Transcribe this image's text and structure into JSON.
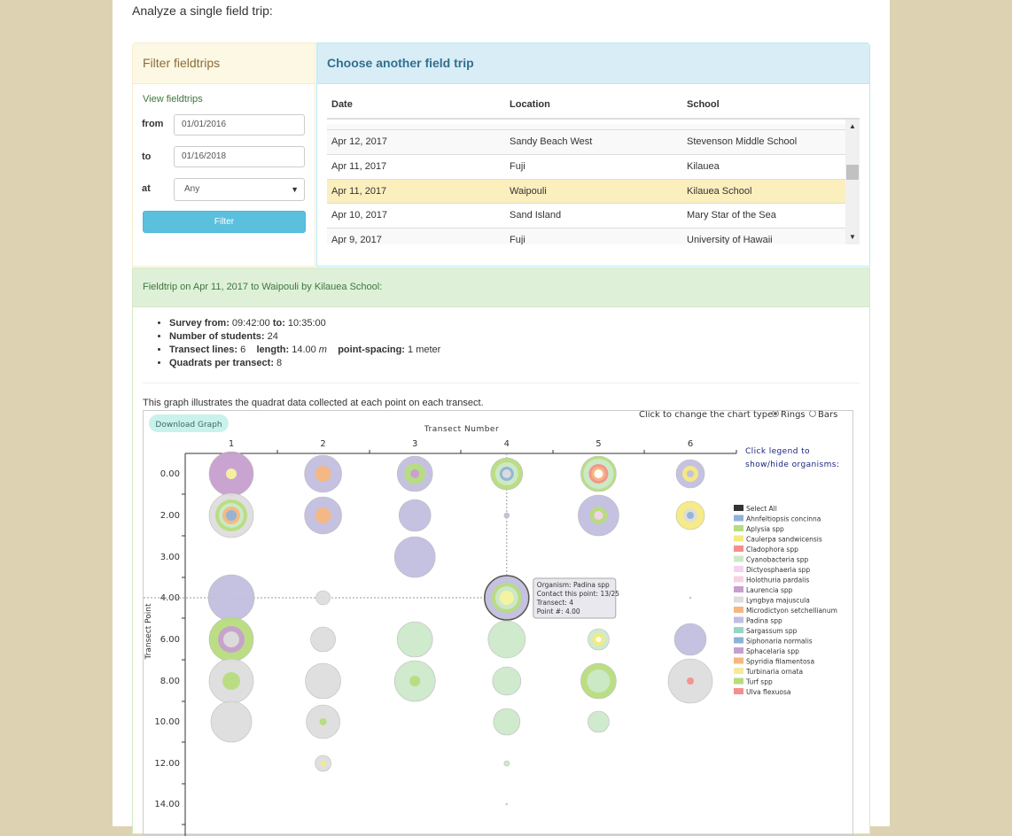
{
  "page": {
    "heading": "Analyze a single field trip:"
  },
  "filter": {
    "title": "Filter fieldtrips",
    "view_link": "View fieldtrips",
    "from_label": "from",
    "from_value": "01/01/2016",
    "to_label": "to",
    "to_value": "01/16/2018",
    "at_label": "at",
    "at_value": "Any",
    "button": "Filter"
  },
  "choose": {
    "title": "Choose another field trip",
    "columns": [
      "Date",
      "Location",
      "School"
    ],
    "rows": [
      {
        "date": "Apr 12, 2017",
        "location": "Sandy Beach West",
        "school": "Stevenson Middle School"
      },
      {
        "date": "Apr 11, 2017",
        "location": "Fuji",
        "school": "Kilauea"
      },
      {
        "date": "Apr 11, 2017",
        "location": "Waipouli",
        "school": "Kilauea School"
      },
      {
        "date": "Apr 10, 2017",
        "location": "Sand Island",
        "school": "Mary Star of the Sea"
      },
      {
        "date": "Apr 9, 2017",
        "location": "Fuji",
        "school": "University of Hawaii"
      }
    ]
  },
  "trip": {
    "header": "Fieldtrip on Apr 11, 2017 to Waipouli by Kilauea School:",
    "survey_label": "Survey from:",
    "survey_from": "09:42:00",
    "to_label": "to:",
    "survey_to": "10:35:00",
    "students_label": "Number of students:",
    "students": "24",
    "transects_label": "Transect lines:",
    "transects": "6",
    "length_label": "length:",
    "length": "14.00",
    "length_unit": "m",
    "spacing_label": "point-spacing:",
    "spacing": "1 meter",
    "quadrats_label": "Quadrats per transect:",
    "quadrats": "8",
    "graph_desc": "This graph illustrates the quadrat data collected at each point on each transect."
  },
  "graph": {
    "download_label": "Download Graph",
    "chart_type_label": "Click to change the chart type:",
    "opt_rings": "Rings",
    "opt_bars": "Bars",
    "legend_hint_1": "Click legend to",
    "legend_hint_2": "show/hide organisms:",
    "tooltip": {
      "organism": "Organism: Padina spp",
      "points": "Contact this point: 13/25",
      "transect": "Transect: 4",
      "point": "Point #: 4.00"
    }
  },
  "chart_data": {
    "type": "scatter",
    "xlabel": "Transect Number",
    "ylabel": "Transect Point",
    "x_ticks": [
      "1",
      "2",
      "3",
      "4",
      "5",
      "6"
    ],
    "y_ticks": [
      "0.00",
      "2.00",
      "3.00",
      "4.00",
      "6.00",
      "8.00",
      "10.00",
      "12.00",
      "14.00"
    ],
    "legend": [
      {
        "name": "Select All",
        "color": "#333333"
      },
      {
        "name": "Ahnfeltiopsis concinna",
        "color": "#8fb2d9"
      },
      {
        "name": "Aplysia spp",
        "color": "#b7dc7e"
      },
      {
        "name": "Caulerpa sandwicensis",
        "color": "#f5ea80"
      },
      {
        "name": "Cladophora spp",
        "color": "#f4908c"
      },
      {
        "name": "Cyanobacteria spp",
        "color": "#cce9c9"
      },
      {
        "name": "Dictyosphaeria spp",
        "color": "#f4d3ef"
      },
      {
        "name": "Holothuria pardalis",
        "color": "#f7d1e6"
      },
      {
        "name": "Laurencia spp",
        "color": "#c79fcf"
      },
      {
        "name": "Lyngbya majuscula",
        "color": "#dddddd"
      },
      {
        "name": "Microdictyon setchellianum",
        "color": "#f6b780"
      },
      {
        "name": "Padina spp",
        "color": "#c2bedf"
      },
      {
        "name": "Sargassum spp",
        "color": "#98d6c4"
      },
      {
        "name": "Siphonaria normalis",
        "color": "#8fb2d9"
      },
      {
        "name": "Sphacelaria spp",
        "color": "#c79fcf"
      },
      {
        "name": "Spyridia filamentosa",
        "color": "#f6b780"
      },
      {
        "name": "Turbinaria ornata",
        "color": "#f5ea9c"
      },
      {
        "name": "Turf spp",
        "color": "#b7dc7e"
      },
      {
        "name": "Ulva flexuosa",
        "color": "#f4908c"
      }
    ],
    "points": [
      {
        "transect": 1,
        "point": "0.00",
        "rings": [
          [
            "#c79fcf",
            25
          ],
          [
            "#f5f3a0",
            6
          ]
        ]
      },
      {
        "transect": 2,
        "point": "0.00",
        "rings": [
          [
            "#c2bedf",
            21
          ],
          [
            "#f6b780",
            9
          ]
        ]
      },
      {
        "transect": 3,
        "point": "0.00",
        "rings": [
          [
            "#c2bedf",
            20
          ],
          [
            "#b7dc7e",
            12
          ],
          [
            "#c79fcf",
            5
          ]
        ]
      },
      {
        "transect": 4,
        "point": "0.00",
        "rings": [
          [
            "#b7dc7e",
            18
          ],
          [
            "#cce9c9",
            13
          ],
          [
            "#8fb2d9",
            8
          ],
          [
            "#dddddd",
            5
          ]
        ]
      },
      {
        "transect": 5,
        "point": "0.00",
        "rings": [
          [
            "#b7dc7e",
            20
          ],
          [
            "#cce9c9",
            17
          ],
          [
            "#f4908c",
            11
          ],
          [
            "#f6b780",
            8
          ],
          [
            "#ffffff",
            5
          ]
        ]
      },
      {
        "transect": 6,
        "point": "0.00",
        "rings": [
          [
            "#c2bedf",
            16
          ],
          [
            "#f5ea80",
            9
          ],
          [
            "#c2bedf",
            4
          ]
        ]
      },
      {
        "transect": 1,
        "point": "2.00",
        "rings": [
          [
            "#dddddd",
            25
          ],
          [
            "#b7dc7e",
            18
          ],
          [
            "#cce9c9",
            14
          ],
          [
            "#f6b780",
            10
          ],
          [
            "#8fb2d9",
            6
          ]
        ]
      },
      {
        "transect": 2,
        "point": "2.00",
        "rings": [
          [
            "#c2bedf",
            21
          ],
          [
            "#f6b780",
            9
          ]
        ]
      },
      {
        "transect": 3,
        "point": "2.00",
        "rings": [
          [
            "#c2bedf",
            18
          ]
        ]
      },
      {
        "transect": 4,
        "point": "2.00",
        "rings": [
          [
            "#c2bedf",
            3
          ]
        ]
      },
      {
        "transect": 5,
        "point": "2.00",
        "rings": [
          [
            "#c2bedf",
            23
          ],
          [
            "#b7dc7e",
            10
          ],
          [
            "#f4d3ef",
            5
          ]
        ]
      },
      {
        "transect": 6,
        "point": "2.00",
        "rings": [
          [
            "#f5ea80",
            16
          ],
          [
            "#dddddd",
            8
          ],
          [
            "#8fb2d9",
            4
          ]
        ]
      },
      {
        "transect": 3,
        "point": "3.00",
        "rings": [
          [
            "#c2bedf",
            23
          ]
        ]
      },
      {
        "transect": 1,
        "point": "4.00",
        "rings": [
          [
            "#c2bedf",
            26
          ]
        ]
      },
      {
        "transect": 2,
        "point": "4.00",
        "rings": [
          [
            "#dddddd",
            8
          ]
        ]
      },
      {
        "transect": 4,
        "point": "4.00",
        "rings": [
          [
            "#c2bedf",
            24
          ],
          [
            "#b7dc7e",
            17
          ],
          [
            "#cce9c9",
            13
          ],
          [
            "#f5f3a0",
            8
          ]
        ]
      },
      {
        "transect": 6,
        "point": "4.00",
        "rings": [
          [
            "#dddddd",
            1
          ]
        ]
      },
      {
        "transect": 1,
        "point": "6.00",
        "rings": [
          [
            "#b7dc7e",
            25
          ],
          [
            "#c79fcf",
            15
          ],
          [
            "#dddddd",
            9
          ]
        ]
      },
      {
        "transect": 2,
        "point": "6.00",
        "rings": [
          [
            "#dddddd",
            14
          ]
        ]
      },
      {
        "transect": 3,
        "point": "6.00",
        "rings": [
          [
            "#cce9c9",
            20
          ]
        ]
      },
      {
        "transect": 4,
        "point": "6.00",
        "rings": [
          [
            "#cce9c9",
            21
          ]
        ]
      },
      {
        "transect": 5,
        "point": "6.00",
        "rings": [
          [
            "#cce9c9",
            12
          ],
          [
            "#f5ea80",
            7
          ],
          [
            "#ffffff",
            3
          ]
        ]
      },
      {
        "transect": 6,
        "point": "6.00",
        "rings": [
          [
            "#c2bedf",
            18
          ]
        ]
      },
      {
        "transect": 1,
        "point": "8.00",
        "rings": [
          [
            "#dddddd",
            25
          ],
          [
            "#b7dc7e",
            10
          ]
        ]
      },
      {
        "transect": 2,
        "point": "8.00",
        "rings": [
          [
            "#dddddd",
            20
          ]
        ]
      },
      {
        "transect": 3,
        "point": "8.00",
        "rings": [
          [
            "#cce9c9",
            23
          ],
          [
            "#b7dc7e",
            6
          ]
        ]
      },
      {
        "transect": 4,
        "point": "8.00",
        "rings": [
          [
            "#cce9c9",
            16
          ]
        ]
      },
      {
        "transect": 5,
        "point": "8.00",
        "rings": [
          [
            "#b7dc7e",
            20
          ],
          [
            "#cce9c9",
            13
          ]
        ]
      },
      {
        "transect": 6,
        "point": "8.00",
        "rings": [
          [
            "#dddddd",
            25
          ],
          [
            "#f4908c",
            4
          ]
        ]
      },
      {
        "transect": 1,
        "point": "10.00",
        "rings": [
          [
            "#dddddd",
            23
          ]
        ]
      },
      {
        "transect": 2,
        "point": "10.00",
        "rings": [
          [
            "#dddddd",
            19
          ],
          [
            "#b7dc7e",
            4
          ]
        ]
      },
      {
        "transect": 4,
        "point": "10.00",
        "rings": [
          [
            "#cce9c9",
            15
          ]
        ]
      },
      {
        "transect": 5,
        "point": "10.00",
        "rings": [
          [
            "#cce9c9",
            12
          ]
        ]
      },
      {
        "transect": 2,
        "point": "12.00",
        "rings": [
          [
            "#dddddd",
            9
          ],
          [
            "#f5ea80",
            3
          ]
        ]
      },
      {
        "transect": 4,
        "point": "12.00",
        "rings": [
          [
            "#cce9c9",
            3
          ]
        ]
      },
      {
        "transect": 4,
        "point": "14.00",
        "rings": [
          [
            "#dddddd",
            1
          ]
        ]
      }
    ],
    "highlight": {
      "transect": 4,
      "point": "4.00"
    }
  }
}
